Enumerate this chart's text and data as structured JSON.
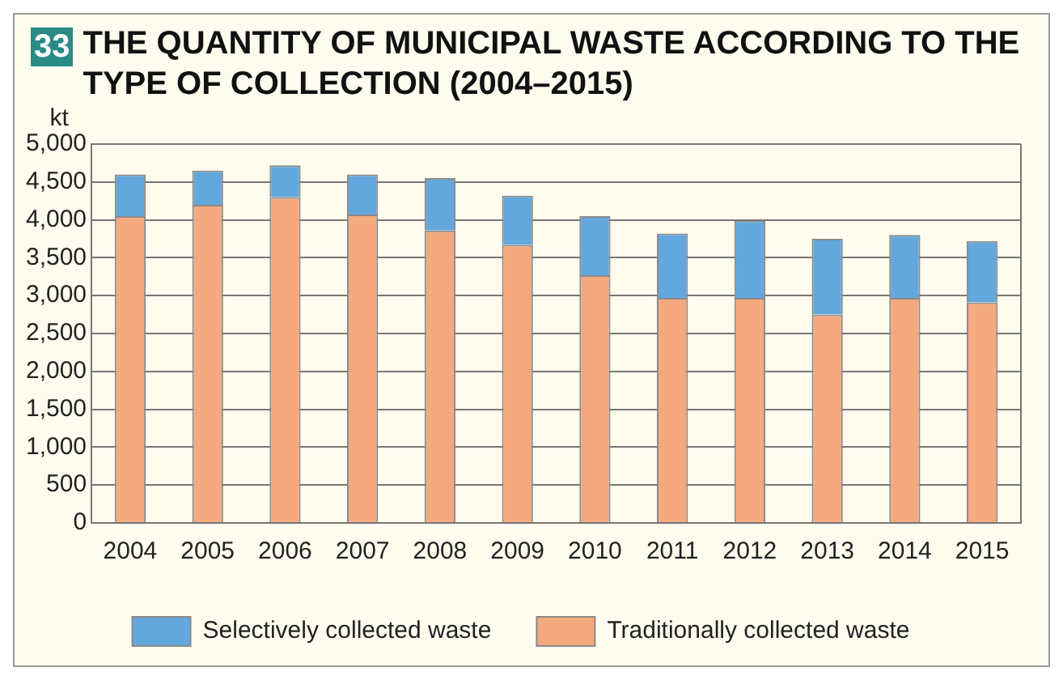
{
  "chart_data": {
    "type": "bar",
    "title": "THE QUANTITY OF MUNICIPAL WASTE ACCORDING TO THE TYPE OF COLLECTION (2004–2015)",
    "annotations": [
      "33"
    ],
    "ylabel": "kt",
    "categories": [
      "2004",
      "2005",
      "2006",
      "2007",
      "2008",
      "2009",
      "2010",
      "2011",
      "2012",
      "2013",
      "2014",
      "2015"
    ],
    "series": [
      {
        "name": "Traditionally collected waste",
        "color": "#f4a97e",
        "values": [
          4050,
          4200,
          4300,
          4070,
          3860,
          3670,
          3270,
          2970,
          2970,
          2750,
          2970,
          2910
        ]
      },
      {
        "name": "Selectively collected waste",
        "color": "#63a8dc",
        "values": [
          550,
          450,
          420,
          530,
          690,
          650,
          780,
          850,
          1020,
          1000,
          830,
          810
        ]
      }
    ],
    "stacked": true,
    "ylim": [
      0,
      5000
    ],
    "yticks": [
      {
        "value": 0,
        "label": "0"
      },
      {
        "value": 500,
        "label": "500"
      },
      {
        "value": 1000,
        "label": "1,000"
      },
      {
        "value": 1500,
        "label": "1,500"
      },
      {
        "value": 2000,
        "label": "2,000"
      },
      {
        "value": 2500,
        "label": "2,500"
      },
      {
        "value": 3000,
        "label": "3,000"
      },
      {
        "value": 3500,
        "label": "3,500"
      },
      {
        "value": 4000,
        "label": "4,000"
      },
      {
        "value": 4500,
        "label": "4,500"
      },
      {
        "value": 5000,
        "label": "5,000"
      }
    ],
    "grid": "y",
    "legend": "bottom"
  }
}
